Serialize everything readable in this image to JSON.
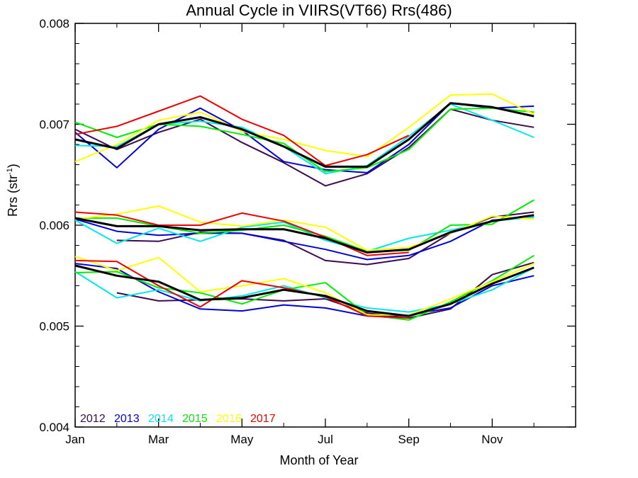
{
  "chart_data": {
    "type": "line",
    "title": "Annual Cycle in VIIRS(VT66) Rrs(486)",
    "xlabel": "Month of Year",
    "ylabel": "Rrs (str",
    "ylabel_sup": "-1",
    "ylabel_close": ")",
    "xlim": [
      1,
      13
    ],
    "ylim": [
      0.004,
      0.008
    ],
    "x_ticks": [
      1,
      3,
      5,
      7,
      9,
      11
    ],
    "x_tick_labels": [
      "Jan",
      "Mar",
      "May",
      "Jul",
      "Sep",
      "Nov"
    ],
    "y_ticks": [
      0.004,
      0.005,
      0.006,
      0.007,
      0.008
    ],
    "y_tick_labels": [
      "0.004",
      "0.005",
      "0.006",
      "0.007",
      "0.008"
    ],
    "x": [
      1,
      2,
      3,
      4,
      5,
      6,
      7,
      8,
      9,
      10,
      11,
      12
    ],
    "legend_position": "bottom-left",
    "series": [
      {
        "name": "2012",
        "color": "#3b0a50",
        "group": "high",
        "values": [
          0.00695,
          0.00675,
          0.00692,
          0.00705,
          0.00682,
          0.00662,
          0.00639,
          0.00651,
          0.00677,
          0.00715,
          0.00704,
          0.00697
        ]
      },
      {
        "name": "2013",
        "color": "#0000dd",
        "group": "high",
        "values": [
          0.00692,
          0.00657,
          0.00695,
          0.00716,
          0.00694,
          0.00663,
          0.00655,
          0.00652,
          0.0068,
          0.00721,
          0.00716,
          0.00718
        ]
      },
      {
        "name": "2014",
        "color": "#00e8e8",
        "group": "high",
        "values": [
          0.00679,
          0.00678,
          0.007,
          0.00703,
          0.00697,
          0.00678,
          0.00651,
          0.00659,
          0.00688,
          0.0072,
          0.00704,
          0.00687
        ]
      },
      {
        "name": "2015",
        "color": "#00ee00",
        "group": "high",
        "values": [
          0.00702,
          0.00687,
          0.007,
          0.00698,
          0.0069,
          0.00681,
          0.00653,
          0.00657,
          0.00675,
          0.00715,
          0.00716,
          0.00712
        ]
      },
      {
        "name": "2016",
        "color": "#ffff00",
        "group": "high",
        "values": [
          0.00663,
          0.0068,
          0.00704,
          0.00712,
          0.00693,
          0.00685,
          0.00674,
          0.00668,
          0.00697,
          0.00729,
          0.0073,
          0.0071
        ]
      },
      {
        "name": "2017",
        "color": "#ee0000",
        "group": "high",
        "values": [
          0.0069,
          0.00698,
          0.00713,
          0.00728,
          0.00705,
          0.00689,
          0.00659,
          0.0067,
          0.00689,
          null,
          null,
          null
        ]
      },
      {
        "name": "2012",
        "color": "#3b0a50",
        "group": "mid",
        "values": [
          null,
          0.00585,
          0.00584,
          0.00593,
          0.00592,
          0.00585,
          0.00565,
          0.00561,
          0.00567,
          0.00592,
          0.00608,
          0.00613
        ]
      },
      {
        "name": "2013",
        "color": "#0000dd",
        "group": "mid",
        "values": [
          0.00606,
          0.00594,
          0.0059,
          0.00592,
          0.00592,
          0.00584,
          0.00576,
          0.00566,
          0.0057,
          0.00584,
          0.00605,
          0.00608
        ]
      },
      {
        "name": "2014",
        "color": "#00e8e8",
        "group": "mid",
        "values": [
          0.00605,
          0.00582,
          0.00597,
          0.00584,
          0.00598,
          0.00603,
          0.00585,
          0.00574,
          0.00587,
          0.00595,
          0.00604,
          0.00608
        ]
      },
      {
        "name": "2015",
        "color": "#00ee00",
        "group": "mid",
        "values": [
          0.00607,
          0.00607,
          0.00599,
          0.00592,
          0.00595,
          0.006,
          0.00589,
          0.00574,
          0.00575,
          0.006,
          0.00601,
          0.00625
        ]
      },
      {
        "name": "2016",
        "color": "#ffff00",
        "group": "mid",
        "values": [
          0.00606,
          0.00611,
          0.00619,
          0.00603,
          0.00599,
          0.00605,
          0.00598,
          0.00575,
          0.00578,
          0.00592,
          0.00609,
          0.00606
        ]
      },
      {
        "name": "2017",
        "color": "#ee0000",
        "group": "mid",
        "values": [
          0.00613,
          0.0061,
          0.006,
          0.006,
          0.00612,
          0.00604,
          0.00588,
          0.0057,
          0.00573,
          null,
          null,
          null
        ]
      },
      {
        "name": "2012",
        "color": "#3b0a50",
        "group": "low",
        "values": [
          null,
          0.00533,
          0.00525,
          0.00526,
          0.00527,
          0.00525,
          0.00527,
          0.00513,
          0.00508,
          0.00517,
          0.00551,
          0.00563
        ]
      },
      {
        "name": "2013",
        "color": "#0000dd",
        "group": "low",
        "values": [
          0.00562,
          0.00557,
          0.00534,
          0.00517,
          0.00515,
          0.00521,
          0.00518,
          0.0051,
          0.00511,
          0.00518,
          0.0054,
          0.0055
        ]
      },
      {
        "name": "2014",
        "color": "#00e8e8",
        "group": "low",
        "values": [
          0.00554,
          0.00528,
          0.00536,
          0.00525,
          0.0053,
          0.0054,
          0.00528,
          0.00518,
          0.00514,
          0.00522,
          0.00536,
          0.00558
        ]
      },
      {
        "name": "2015",
        "color": "#00ee00",
        "group": "low",
        "values": [
          0.00553,
          0.00554,
          0.00538,
          0.00533,
          0.00522,
          0.00536,
          0.00543,
          0.00511,
          0.00506,
          0.00524,
          0.00545,
          0.0057
        ]
      },
      {
        "name": "2016",
        "color": "#ffff00",
        "group": "low",
        "values": [
          0.00569,
          0.00555,
          0.00568,
          0.00534,
          0.0054,
          0.00547,
          0.00533,
          0.00511,
          0.00511,
          0.00527,
          0.00544,
          0.00562
        ]
      },
      {
        "name": "2017",
        "color": "#ee0000",
        "group": "low",
        "values": [
          0.00565,
          0.00564,
          0.0054,
          0.00519,
          0.00545,
          0.00538,
          0.00529,
          0.0051,
          0.00508,
          null,
          null,
          null
        ]
      }
    ],
    "mean_series": [
      {
        "color": "#000000",
        "group": "high",
        "values": [
          0.00685,
          0.00676,
          0.007,
          0.00707,
          0.00695,
          0.00678,
          0.00658,
          0.00658,
          0.00685,
          0.00721,
          0.00717,
          0.00708
        ]
      },
      {
        "color": "#000000",
        "group": "mid",
        "values": [
          0.00607,
          0.00599,
          0.00599,
          0.00595,
          0.00596,
          0.00596,
          0.00587,
          0.00573,
          0.00576,
          0.00593,
          0.00604,
          0.0061
        ]
      },
      {
        "color": "#000000",
        "group": "low",
        "values": [
          0.0056,
          0.0055,
          0.00544,
          0.00526,
          0.00528,
          0.00536,
          0.0053,
          0.00515,
          0.0051,
          0.00522,
          0.00542,
          0.00558
        ]
      }
    ],
    "legend": [
      {
        "label": "2012",
        "color": "#3b0a50"
      },
      {
        "label": "2013",
        "color": "#0000dd"
      },
      {
        "label": "2014",
        "color": "#00e8e8"
      },
      {
        "label": "2015",
        "color": "#00ee00"
      },
      {
        "label": "2016",
        "color": "#ffff00"
      },
      {
        "label": "2017",
        "color": "#ee0000"
      }
    ]
  }
}
